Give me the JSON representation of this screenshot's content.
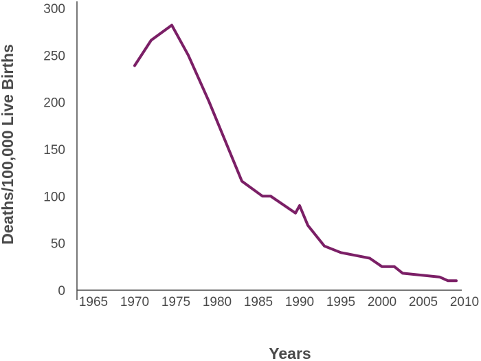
{
  "chart_data": {
    "type": "line",
    "title": "",
    "xlabel": "Years",
    "ylabel": "Deaths/100,000 Live Births",
    "xlim": [
      1963,
      2012
    ],
    "ylim": [
      0,
      300
    ],
    "xticks": [
      1965,
      1970,
      1975,
      1980,
      1985,
      1990,
      1995,
      2000,
      2005,
      2010
    ],
    "yticks": [
      0,
      50,
      100,
      150,
      200,
      250,
      300
    ],
    "grid": false,
    "legend": "none",
    "color": "#7b1f66",
    "series": [
      {
        "x": [
          1970,
          1972,
          1974.5,
          1976.5,
          1979,
          1983,
          1985.5,
          1986.5,
          1989.5,
          1990,
          1991,
          1993,
          1995,
          1998.5,
          2000,
          2001.5,
          2002.5,
          2007,
          2008,
          2009
        ],
        "y": [
          239,
          266,
          282,
          250,
          201,
          116,
          100,
          100,
          82,
          90,
          69,
          47,
          40,
          34,
          25,
          25,
          18,
          14,
          10,
          10
        ]
      }
    ]
  }
}
